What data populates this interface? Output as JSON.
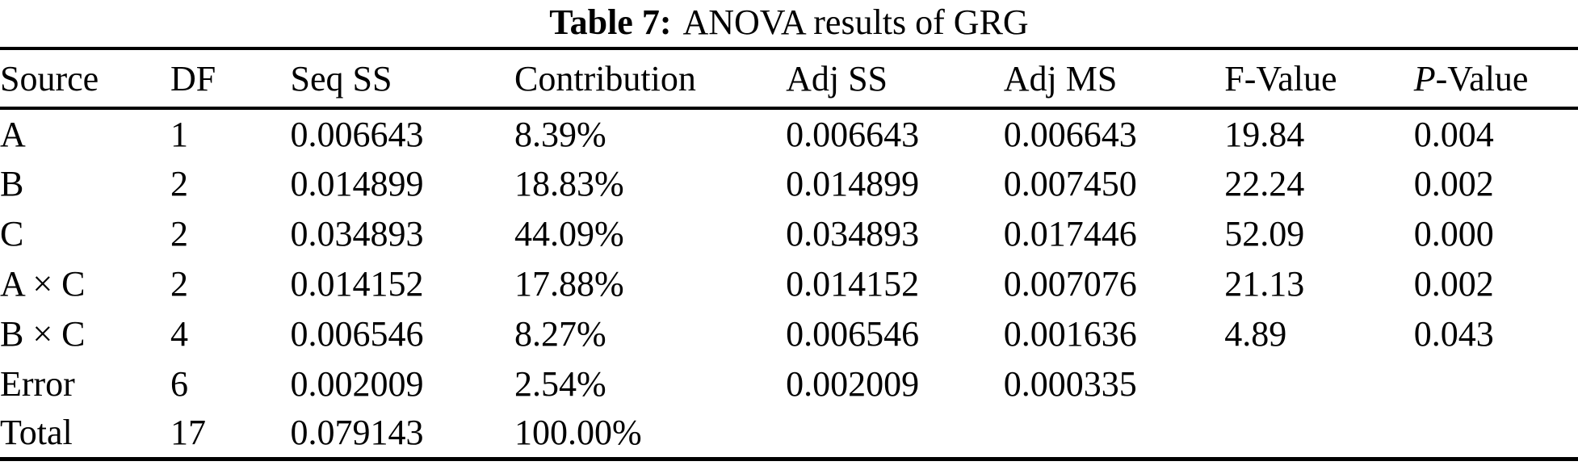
{
  "caption": {
    "label": "Table 7:",
    "text": "ANOVA results of GRG"
  },
  "table": {
    "headers": [
      "Source",
      "DF",
      "Seq SS",
      "Contribution",
      "Adj SS",
      "Adj MS",
      "F-Value"
    ],
    "p_value_header": {
      "italic": "P",
      "rest": "-Value"
    },
    "rows": [
      {
        "source": "A",
        "df": "1",
        "seq_ss": "0.006643",
        "contribution": "8.39%",
        "adj_ss": "0.006643",
        "adj_ms": "0.006643",
        "f_value": "19.84",
        "p_value": "0.004"
      },
      {
        "source": "B",
        "df": "2",
        "seq_ss": "0.014899",
        "contribution": "18.83%",
        "adj_ss": "0.014899",
        "adj_ms": "0.007450",
        "f_value": "22.24",
        "p_value": "0.002"
      },
      {
        "source": "C",
        "df": "2",
        "seq_ss": "0.034893",
        "contribution": "44.09%",
        "adj_ss": "0.034893",
        "adj_ms": "0.017446",
        "f_value": "52.09",
        "p_value": "0.000"
      },
      {
        "source": "A × C",
        "df": "2",
        "seq_ss": "0.014152",
        "contribution": "17.88%",
        "adj_ss": "0.014152",
        "adj_ms": "0.007076",
        "f_value": "21.13",
        "p_value": "0.002"
      },
      {
        "source": "B × C",
        "df": "4",
        "seq_ss": "0.006546",
        "contribution": "8.27%",
        "adj_ss": "0.006546",
        "adj_ms": "0.001636",
        "f_value": "4.89",
        "p_value": "0.043"
      },
      {
        "source": "Error",
        "df": "6",
        "seq_ss": "0.002009",
        "contribution": "2.54%",
        "adj_ss": "0.002009",
        "adj_ms": "0.000335",
        "f_value": "",
        "p_value": ""
      },
      {
        "source": "Total",
        "df": "17",
        "seq_ss": "0.079143",
        "contribution": "100.00%",
        "adj_ss": "",
        "adj_ms": "",
        "f_value": "",
        "p_value": ""
      }
    ]
  }
}
